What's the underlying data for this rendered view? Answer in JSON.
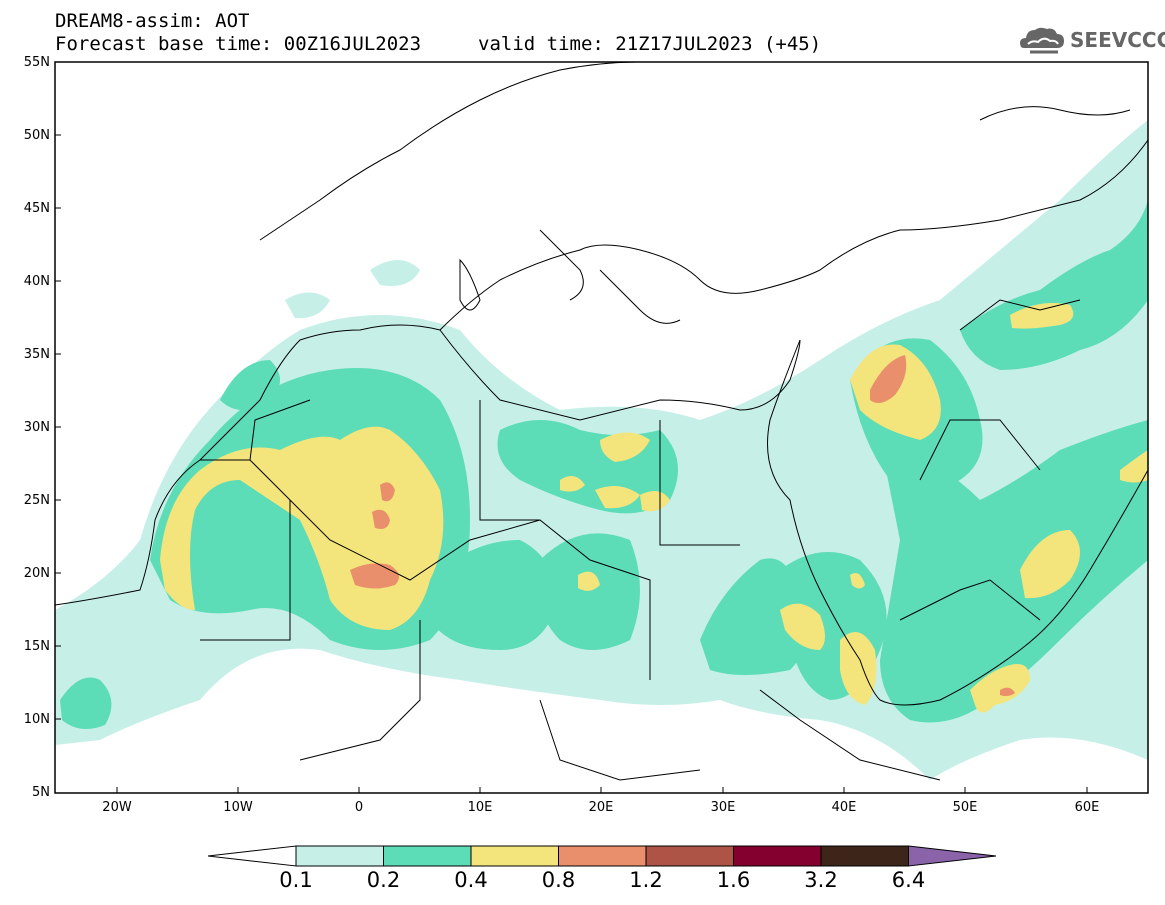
{
  "header": {
    "model": "DREAM8-assim: AOT",
    "base_time": "Forecast base time: 00Z16JUL2023",
    "valid_time": "valid time: 21Z17JUL2023 (+45)"
  },
  "logo": {
    "text": "SEEVCCC",
    "icon": "cloud-icon"
  },
  "map": {
    "region": {
      "lon_min": -25,
      "lon_max": 65,
      "lat_min": 5,
      "lat_max": 55
    },
    "lat_ticks": [
      "55N",
      "50N",
      "45N",
      "40N",
      "35N",
      "30N",
      "25N",
      "20N",
      "15N",
      "10N",
      "5N"
    ],
    "lon_ticks": [
      "20W",
      "10W",
      "0",
      "10E",
      "20E",
      "30E",
      "40E",
      "50E",
      "60E"
    ]
  },
  "colorbar": {
    "labels": [
      "0.1",
      "0.2",
      "0.4",
      "0.8",
      "1.2",
      "1.6",
      "3.2",
      "6.4"
    ],
    "colors": [
      "#c6efe8",
      "#5ddcb8",
      "#f4e47c",
      "#ea8f6c",
      "#ad5446",
      "#84002e",
      "#3d2619",
      "#8a63a8"
    ],
    "under_color": "#ffffff"
  }
}
